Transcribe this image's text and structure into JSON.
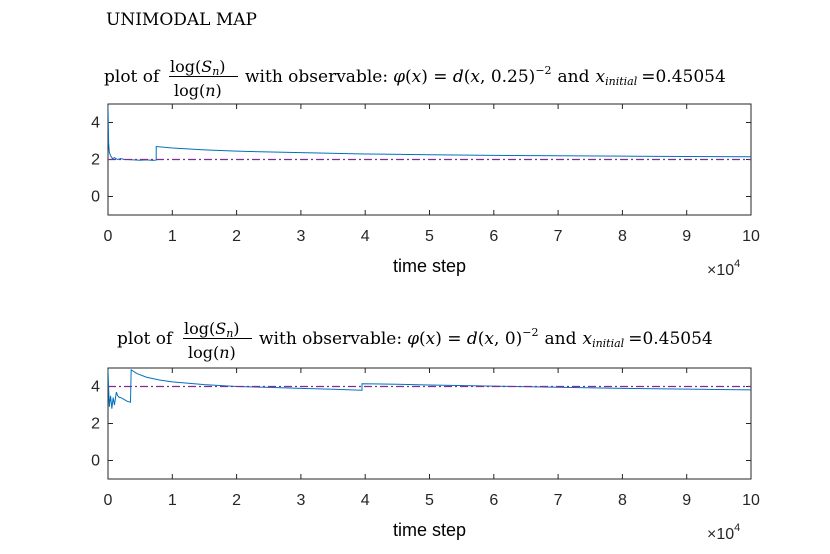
{
  "figure_title": "UNIMODAL MAP",
  "colors": {
    "series": "#0072BD",
    "reference": "#7E2F8E",
    "axis": "#262626"
  },
  "plots": [
    {
      "title": {
        "prefix": "plot of",
        "frac_num_a": "log(",
        "frac_num_var": "S",
        "frac_num_sub": "n",
        "frac_num_b": ")",
        "frac_den_a": "log(",
        "frac_den_var": "n",
        "frac_den_b": ")",
        "mid": "with observable:",
        "phi": "φ",
        "eq_a": "(",
        "eq_x": "x",
        "eq_b": ") = ",
        "eq_d": "d",
        "eq_c": "(",
        "eq_x2": "x",
        "eq_args": ", 0.25)",
        "eq_exp": "−2",
        "and": "and",
        "xinit": "x",
        "xinit_sub": "initial",
        "xinit_value": "=0.45054"
      }
    },
    {
      "title": {
        "prefix": "plot of",
        "frac_num_a": "log(",
        "frac_num_var": "S",
        "frac_num_sub": "n",
        "frac_num_b": ")",
        "frac_den_a": "log(",
        "frac_den_var": "n",
        "frac_den_b": ")",
        "mid": "with observable:",
        "phi": "φ",
        "eq_a": "(",
        "eq_x": "x",
        "eq_b": ") = ",
        "eq_d": "d",
        "eq_c": "(",
        "eq_x2": "x",
        "eq_args": ", 0)",
        "eq_exp": "−2",
        "and": "and",
        "xinit": "x",
        "xinit_sub": "initial",
        "xinit_value": "=0.45054"
      }
    }
  ],
  "chart_data": [
    {
      "type": "line",
      "title": "plot of log(S_n)/log(n) with observable: φ(x) = d(x, 0.25)^−2 and x_initial =0.45054",
      "xlabel": "time step",
      "x_exponent_label": "×10",
      "x_exponent": "4",
      "xlim": [
        0,
        100000
      ],
      "ylim": [
        -1,
        5
      ],
      "xticks": [
        0,
        10000,
        20000,
        30000,
        40000,
        50000,
        60000,
        70000,
        80000,
        90000,
        100000
      ],
      "xticklabels": [
        "0",
        "1",
        "2",
        "3",
        "4",
        "5",
        "6",
        "7",
        "8",
        "9",
        "10"
      ],
      "yticks": [
        0,
        2,
        4
      ],
      "yticklabels": [
        "0",
        "2",
        "4"
      ],
      "grid": false,
      "series": [
        {
          "style": "solid",
          "x": [
            1,
            100,
            200,
            400,
            700,
            1000,
            1500,
            2000,
            2500,
            3000,
            4000,
            5000,
            6000,
            7000,
            7500,
            7501,
            10000,
            15000,
            20000,
            30000,
            40000,
            50000,
            60000,
            70000,
            80000,
            90000,
            100000
          ],
          "y": [
            4.9,
            2.9,
            2.4,
            2.2,
            2.05,
            2.1,
            2.0,
            2.05,
            2.0,
            2.0,
            1.98,
            1.96,
            1.98,
            1.95,
            1.97,
            2.7,
            2.62,
            2.52,
            2.45,
            2.37,
            2.3,
            2.26,
            2.22,
            2.2,
            2.18,
            2.16,
            2.15
          ]
        },
        {
          "style": "dash-dot",
          "x": [
            0,
            100000
          ],
          "y": [
            2,
            2
          ]
        }
      ]
    },
    {
      "type": "line",
      "title": "plot of log(S_n)/log(n) with observable: φ(x) = d(x, 0)^−2 and x_initial =0.45054",
      "xlabel": "time step",
      "x_exponent_label": "×10",
      "x_exponent": "4",
      "xlim": [
        0,
        100000
      ],
      "ylim": [
        -1,
        5
      ],
      "xticks": [
        0,
        10000,
        20000,
        30000,
        40000,
        50000,
        60000,
        70000,
        80000,
        90000,
        100000
      ],
      "xticklabels": [
        "0",
        "1",
        "2",
        "3",
        "4",
        "5",
        "6",
        "7",
        "8",
        "9",
        "10"
      ],
      "yticks": [
        0,
        2,
        4
      ],
      "yticklabels": [
        "0",
        "2",
        "4"
      ],
      "grid": false,
      "series": [
        {
          "style": "solid",
          "x": [
            1,
            200,
            400,
            600,
            800,
            1000,
            1300,
            1500,
            1800,
            2000,
            2500,
            3000,
            3500,
            3600,
            4500,
            6000,
            8000,
            10000,
            15000,
            20000,
            25000,
            30000,
            35000,
            39500,
            39501,
            45000,
            50000,
            60000,
            70000,
            80000,
            90000,
            100000
          ],
          "y": [
            4.9,
            2.9,
            3.5,
            2.8,
            3.4,
            3.0,
            3.7,
            3.5,
            3.4,
            3.4,
            3.3,
            3.2,
            3.15,
            4.9,
            4.7,
            4.5,
            4.35,
            4.25,
            4.1,
            4.0,
            3.95,
            3.9,
            3.85,
            3.8,
            4.15,
            4.12,
            4.08,
            4.02,
            3.96,
            3.9,
            3.86,
            3.82
          ]
        },
        {
          "style": "dash-dot",
          "x": [
            0,
            100000
          ],
          "y": [
            4,
            4
          ]
        }
      ]
    }
  ]
}
